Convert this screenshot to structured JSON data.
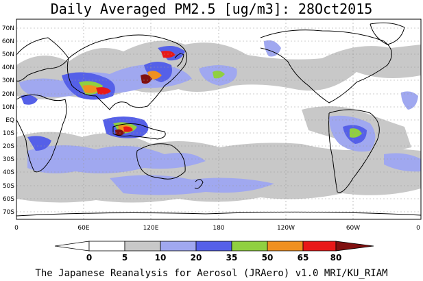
{
  "title": "Daily Averaged PM2.5 [ug/m3]: 28Oct2015",
  "footer": "The Japanese Reanalysis for Aerosol (JRAero) v1.0 MRI/KU_RIAM",
  "lat_labels": [
    "70N",
    "60N",
    "50N",
    "40N",
    "30N",
    "20N",
    "10N",
    "EQ",
    "10S",
    "20S",
    "30S",
    "40S",
    "50S",
    "60S",
    "70S"
  ],
  "lon_labels": [
    "0",
    "60E",
    "120E",
    "180",
    "120W",
    "60W",
    "0"
  ],
  "colorbar": {
    "ticks": [
      "0",
      "5",
      "10",
      "20",
      "35",
      "50",
      "65",
      "80"
    ],
    "colors": [
      "#ffffff",
      "#c8c8c8",
      "#a0a8f0",
      "#5560e8",
      "#90d040",
      "#f09020",
      "#e81818",
      "#801010"
    ]
  },
  "land_color": "#ffffff",
  "coast_color": "#000000"
}
